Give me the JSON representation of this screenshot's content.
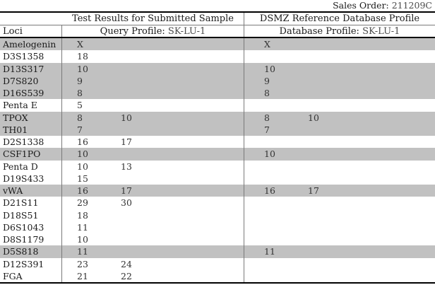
{
  "sales_order": {
    "label": "Sales Order:",
    "value": "211209C"
  },
  "table": {
    "header": {
      "left_title": "Test Results for Submitted Sample",
      "right_title": "DSMZ Reference Database Profile",
      "loci_label": "Loci",
      "query_label": "Query Profile:",
      "query_value": "SK-LU-1",
      "db_label": "Database Profile:",
      "db_value": "SK-LU-1"
    },
    "rows": [
      {
        "locus": "Amelogenin",
        "query": [
          "X",
          ""
        ],
        "reference": [
          "X",
          ""
        ],
        "match": true
      },
      {
        "locus": "D3S1358",
        "query": [
          "18",
          ""
        ],
        "reference": [
          "",
          ""
        ],
        "match": false
      },
      {
        "locus": "D13S317",
        "query": [
          "10",
          ""
        ],
        "reference": [
          "10",
          ""
        ],
        "match": true
      },
      {
        "locus": "D7S820",
        "query": [
          "9",
          ""
        ],
        "reference": [
          "9",
          ""
        ],
        "match": true
      },
      {
        "locus": "D16S539",
        "query": [
          "8",
          ""
        ],
        "reference": [
          "8",
          ""
        ],
        "match": true
      },
      {
        "locus": "Penta E",
        "query": [
          "5",
          ""
        ],
        "reference": [
          "",
          ""
        ],
        "match": false
      },
      {
        "locus": "TPOX",
        "query": [
          "8",
          "10"
        ],
        "reference": [
          "8",
          "10"
        ],
        "match": true
      },
      {
        "locus": "TH01",
        "query": [
          "7",
          ""
        ],
        "reference": [
          "7",
          ""
        ],
        "match": true
      },
      {
        "locus": "D2S1338",
        "query": [
          "16",
          "17"
        ],
        "reference": [
          "",
          ""
        ],
        "match": false
      },
      {
        "locus": "CSF1PO",
        "query": [
          "10",
          ""
        ],
        "reference": [
          "10",
          ""
        ],
        "match": true
      },
      {
        "locus": "Penta D",
        "query": [
          "10",
          "13"
        ],
        "reference": [
          "",
          ""
        ],
        "match": false
      },
      {
        "locus": "D19S433",
        "query": [
          "15",
          ""
        ],
        "reference": [
          "",
          ""
        ],
        "match": false
      },
      {
        "locus": "vWA",
        "query": [
          "16",
          "17"
        ],
        "reference": [
          "16",
          "17"
        ],
        "match": true
      },
      {
        "locus": "D21S11",
        "query": [
          "29",
          "30"
        ],
        "reference": [
          "",
          ""
        ],
        "match": false
      },
      {
        "locus": "D18S51",
        "query": [
          "18",
          ""
        ],
        "reference": [
          "",
          ""
        ],
        "match": false
      },
      {
        "locus": "D6S1043",
        "query": [
          "11",
          ""
        ],
        "reference": [
          "",
          ""
        ],
        "match": false
      },
      {
        "locus": "D8S1179",
        "query": [
          "10",
          ""
        ],
        "reference": [
          "",
          ""
        ],
        "match": false
      },
      {
        "locus": "D5S818",
        "query": [
          "11",
          ""
        ],
        "reference": [
          "11",
          ""
        ],
        "match": true
      },
      {
        "locus": "D12S391",
        "query": [
          "23",
          "24"
        ],
        "reference": [
          "",
          ""
        ],
        "match": false
      },
      {
        "locus": "FGA",
        "query": [
          "21",
          "22"
        ],
        "reference": [
          "",
          ""
        ],
        "match": false
      }
    ]
  },
  "colors": {
    "match_row_background": "#c1c1c1",
    "thick_border": "#000000",
    "thin_line": "#7a7a7a",
    "value_text": "#4d4d4d"
  }
}
